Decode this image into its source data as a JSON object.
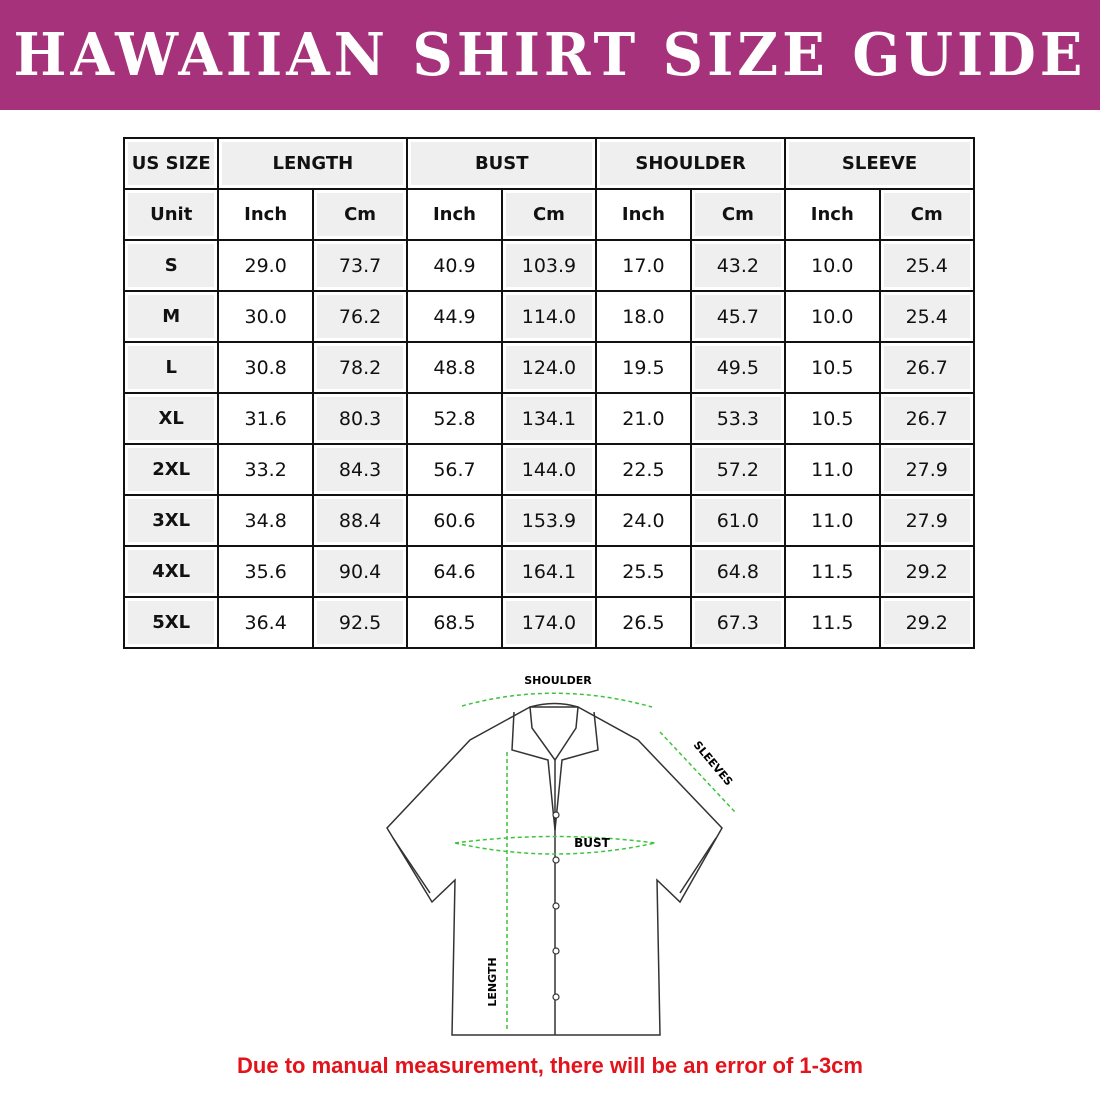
{
  "title": "HAWAIIAN SHIRT SIZE GUIDE",
  "table": {
    "groups": [
      "US SIZE",
      "LENGTH",
      "BUST",
      "SHOULDER",
      "SLEEVE"
    ],
    "units": [
      "Unit",
      "Inch",
      "Cm",
      "Inch",
      "Cm",
      "Inch",
      "Cm",
      "Inch",
      "Cm"
    ],
    "rows": [
      [
        "S",
        "29.0",
        "73.7",
        "40.9",
        "103.9",
        "17.0",
        "43.2",
        "10.0",
        "25.4"
      ],
      [
        "M",
        "30.0",
        "76.2",
        "44.9",
        "114.0",
        "18.0",
        "45.7",
        "10.0",
        "25.4"
      ],
      [
        "L",
        "30.8",
        "78.2",
        "48.8",
        "124.0",
        "19.5",
        "49.5",
        "10.5",
        "26.7"
      ],
      [
        "XL",
        "31.6",
        "80.3",
        "52.8",
        "134.1",
        "21.0",
        "53.3",
        "10.5",
        "26.7"
      ],
      [
        "2XL",
        "33.2",
        "84.3",
        "56.7",
        "144.0",
        "22.5",
        "57.2",
        "11.0",
        "27.9"
      ],
      [
        "3XL",
        "34.8",
        "88.4",
        "60.6",
        "153.9",
        "24.0",
        "61.0",
        "11.0",
        "27.9"
      ],
      [
        "4XL",
        "35.6",
        "90.4",
        "64.6",
        "164.1",
        "25.5",
        "64.8",
        "11.5",
        "29.2"
      ],
      [
        "5XL",
        "36.4",
        "92.5",
        "68.5",
        "174.0",
        "26.5",
        "67.3",
        "11.5",
        "29.2"
      ]
    ]
  },
  "diagram": {
    "shoulder": "SHOULDER",
    "sleeves": "SLEEVES",
    "bust": "BUST",
    "length": "LENGTH"
  },
  "note": "Due to manual measurement, there will be an error of 1-3cm",
  "colors": {
    "banner": "#a5327a",
    "note": "#e3131b",
    "measure": "#3cc43c"
  }
}
